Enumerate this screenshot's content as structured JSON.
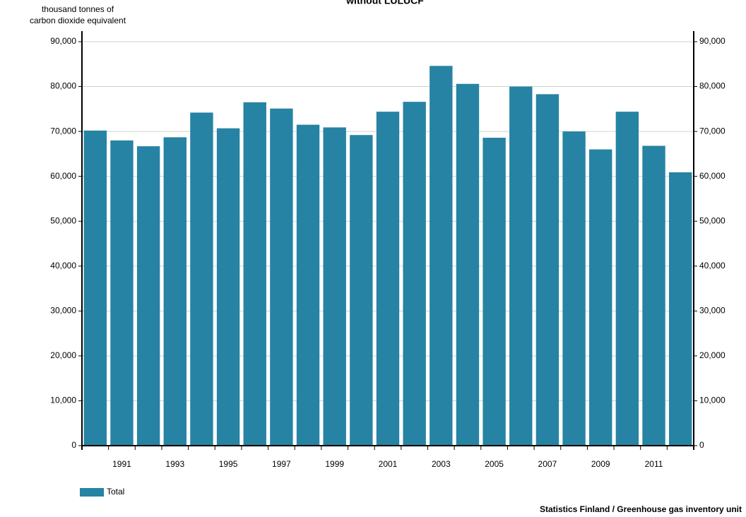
{
  "chart_data": {
    "type": "bar",
    "title": "without LULUCF",
    "y_label": [
      "thousand tonnes of",
      "carbon dioxide equivalent"
    ],
    "categories": [
      null,
      "1991",
      null,
      "1993",
      null,
      "1995",
      null,
      "1997",
      null,
      "1999",
      null,
      "2001",
      null,
      "2003",
      null,
      "2005",
      null,
      "2007",
      null,
      "2009",
      null,
      "2011",
      null
    ],
    "series": [
      {
        "name": "Total",
        "color": "#2683a3",
        "values": [
          70200,
          68000,
          66700,
          68700,
          74200,
          70700,
          76500,
          75100,
          71500,
          70900,
          69200,
          74400,
          76600,
          84600,
          80600,
          68600,
          80000,
          78300,
          70000,
          66000,
          74400,
          66800,
          60900
        ]
      }
    ],
    "ylim": [
      0,
      90000
    ],
    "yticks": [
      {
        "value": 0,
        "label": "0"
      },
      {
        "value": 10000,
        "label": "10,000"
      },
      {
        "value": 20000,
        "label": "20,000"
      },
      {
        "value": 30000,
        "label": "30,000"
      },
      {
        "value": 40000,
        "label": "40,000"
      },
      {
        "value": 50000,
        "label": "50,000"
      },
      {
        "value": 60000,
        "label": "60,000"
      },
      {
        "value": 70000,
        "label": "70,000"
      },
      {
        "value": 80000,
        "label": "80,000"
      },
      {
        "value": 90000,
        "label": "90,000"
      }
    ],
    "grid": true,
    "source": "Statistics Finland / Greenhouse gas inventory unit"
  }
}
